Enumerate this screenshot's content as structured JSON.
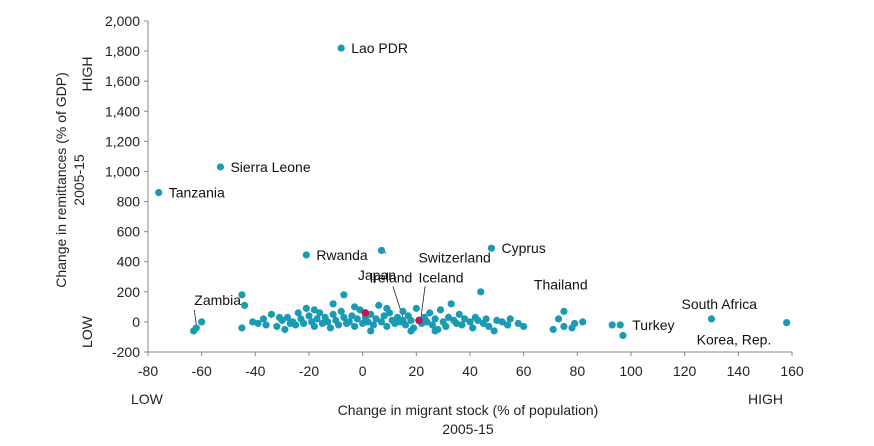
{
  "chart_data": {
    "type": "scatter",
    "xlabel": [
      "Change in migrant stock (% of population)",
      "2005-15"
    ],
    "ylabel": [
      "Change in remittances (% of GDP)",
      "2005-15"
    ],
    "xlim": [
      -80,
      160
    ],
    "ylim": [
      -200,
      2000
    ],
    "x_ticks": [
      -80,
      -60,
      -40,
      -20,
      0,
      20,
      40,
      60,
      80,
      100,
      120,
      140,
      160
    ],
    "y_ticks": [
      -200,
      0,
      200,
      400,
      600,
      800,
      1000,
      1200,
      1400,
      1600,
      1800,
      2000
    ],
    "y_tick_labels": [
      "-200",
      "0",
      "200",
      "400",
      "600",
      "800",
      "1,000",
      "1,200",
      "1,400",
      "1,600",
      "1,800",
      "2,000"
    ],
    "axis_extremes": {
      "x_low": "LOW",
      "x_high": "HIGH",
      "y_low": "LOW",
      "y_high": "HIGH"
    },
    "colors": {
      "points": "#1a9bb2",
      "highlight": "#c0185a"
    },
    "labeled_points": [
      {
        "label": "Lao PDR",
        "x": -8,
        "y": 1820
      },
      {
        "label": "Sierra Leone",
        "x": -53,
        "y": 1030
      },
      {
        "label": "Tanzania",
        "x": -76,
        "y": 860
      },
      {
        "label": "Cyprus",
        "x": 48,
        "y": 490
      },
      {
        "label": "Rwanda",
        "x": -21,
        "y": 445
      },
      {
        "label": "Switzerland",
        "x": 7,
        "y": 475
      },
      {
        "label": "Ireland",
        "x": 15,
        "y": 10
      },
      {
        "label": "Iceland",
        "x": 21,
        "y": 10
      },
      {
        "label": "Japan",
        "x": -7,
        "y": 180
      },
      {
        "label": "Zambia",
        "x": -62,
        "y": -40
      },
      {
        "label": "Thailand",
        "x": 75,
        "y": 70
      },
      {
        "label": "Turkey",
        "x": 96,
        "y": -20
      },
      {
        "label": "South Africa",
        "x": 130,
        "y": 20
      },
      {
        "label": "Korea, Rep.",
        "x": 158,
        "y": -5
      }
    ],
    "highlight_points": [
      {
        "x": 1,
        "y": 60
      },
      {
        "x": 21,
        "y": 10
      }
    ],
    "points": [
      [
        -45,
        180
      ],
      [
        -44,
        110
      ],
      [
        -45,
        -40
      ],
      [
        -60,
        0
      ],
      [
        -63,
        -60
      ],
      [
        -37,
        20
      ],
      [
        -36,
        -20
      ],
      [
        -34,
        50
      ],
      [
        -32,
        -30
      ],
      [
        -30,
        10
      ],
      [
        -29,
        -50
      ],
      [
        -28,
        30
      ],
      [
        -26,
        0
      ],
      [
        -25,
        -20
      ],
      [
        -24,
        60
      ],
      [
        -23,
        20
      ],
      [
        -22,
        -10
      ],
      [
        -21,
        90
      ],
      [
        -20,
        40
      ],
      [
        -19,
        0
      ],
      [
        -18,
        -30
      ],
      [
        -17,
        20
      ],
      [
        -16,
        60
      ],
      [
        -15,
        -10
      ],
      [
        -14,
        30
      ],
      [
        -13,
        0
      ],
      [
        -12,
        -40
      ],
      [
        -11,
        50
      ],
      [
        -10,
        10
      ],
      [
        -9,
        -20
      ],
      [
        -8,
        70
      ],
      [
        -7,
        30
      ],
      [
        -6,
        -10
      ],
      [
        -5,
        0
      ],
      [
        -4,
        40
      ],
      [
        -3,
        -30
      ],
      [
        -2,
        20
      ],
      [
        -1,
        80
      ],
      [
        0,
        -10
      ],
      [
        1,
        30
      ],
      [
        2,
        0
      ],
      [
        3,
        50
      ],
      [
        4,
        -20
      ],
      [
        5,
        20
      ],
      [
        6,
        110
      ],
      [
        7,
        0
      ],
      [
        8,
        40
      ],
      [
        9,
        -30
      ],
      [
        10,
        60
      ],
      [
        11,
        10
      ],
      [
        12,
        -10
      ],
      [
        13,
        30
      ],
      [
        14,
        0
      ],
      [
        16,
        -20
      ],
      [
        17,
        40
      ],
      [
        18,
        10
      ],
      [
        19,
        -40
      ],
      [
        20,
        90
      ],
      [
        22,
        -10
      ],
      [
        23,
        30
      ],
      [
        24,
        0
      ],
      [
        25,
        60
      ],
      [
        26,
        -20
      ],
      [
        27,
        20
      ],
      [
        28,
        -50
      ],
      [
        29,
        80
      ],
      [
        30,
        0
      ],
      [
        31,
        -30
      ],
      [
        32,
        30
      ],
      [
        33,
        120
      ],
      [
        34,
        10
      ],
      [
        35,
        -10
      ],
      [
        36,
        50
      ],
      [
        37,
        -20
      ],
      [
        38,
        20
      ],
      [
        40,
        0
      ],
      [
        41,
        -40
      ],
      [
        42,
        30
      ],
      [
        43,
        10
      ],
      [
        44,
        200
      ],
      [
        45,
        -10
      ],
      [
        46,
        20
      ],
      [
        47,
        -30
      ],
      [
        49,
        -60
      ],
      [
        50,
        10
      ],
      [
        52,
        0
      ],
      [
        54,
        -20
      ],
      [
        55,
        20
      ],
      [
        58,
        -10
      ],
      [
        60,
        -30
      ],
      [
        71,
        -50
      ],
      [
        73,
        20
      ],
      [
        75,
        -30
      ],
      [
        78,
        -40
      ],
      [
        79,
        -10
      ],
      [
        82,
        0
      ],
      [
        93,
        -20
      ],
      [
        97,
        -90
      ],
      [
        -41,
        0
      ],
      [
        -39,
        -10
      ],
      [
        -31,
        30
      ],
      [
        -27,
        -10
      ],
      [
        -18,
        80
      ],
      [
        -11,
        120
      ],
      [
        -3,
        100
      ],
      [
        3,
        -60
      ],
      [
        9,
        90
      ],
      [
        15,
        70
      ],
      [
        18,
        -60
      ],
      [
        27,
        -60
      ]
    ]
  }
}
